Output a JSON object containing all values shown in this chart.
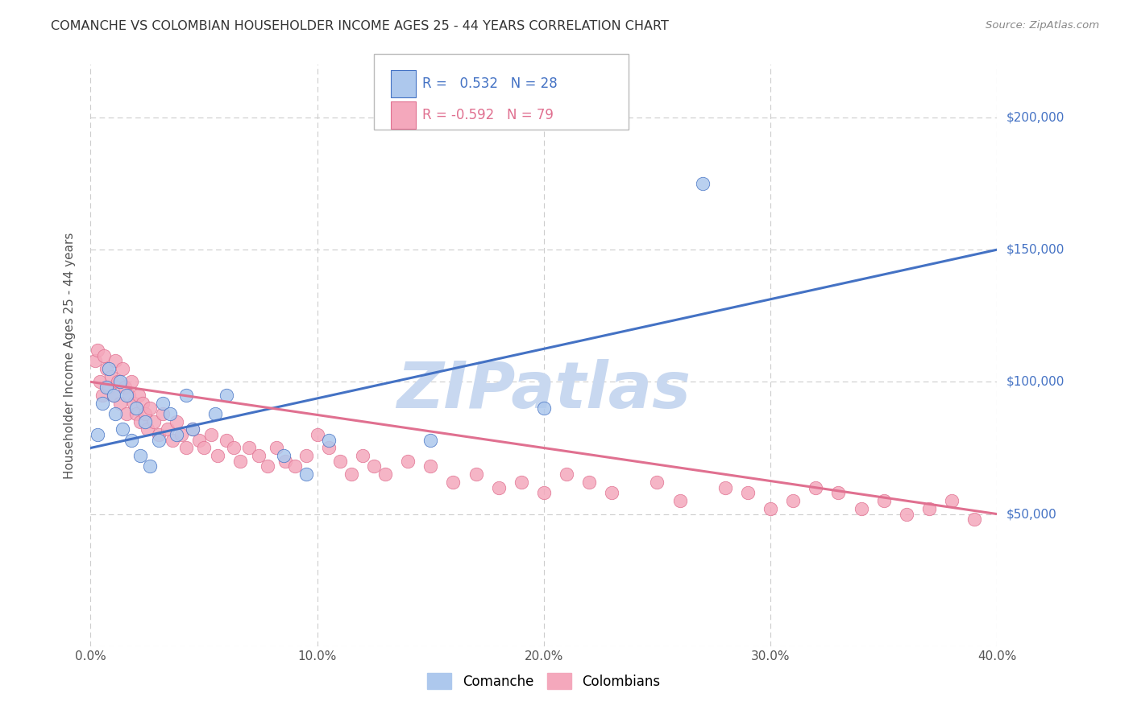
{
  "title": "COMANCHE VS COLOMBIAN HOUSEHOLDER INCOME AGES 25 - 44 YEARS CORRELATION CHART",
  "source": "Source: ZipAtlas.com",
  "ylabel": "Householder Income Ages 25 - 44 years",
  "xlim": [
    0.0,
    0.4
  ],
  "ylim": [
    0,
    220000
  ],
  "yticks": [
    0,
    50000,
    100000,
    150000,
    200000
  ],
  "xtick_labels": [
    "0.0%",
    "10.0%",
    "20.0%",
    "30.0%",
    "40.0%"
  ],
  "xticks": [
    0.0,
    0.1,
    0.2,
    0.3,
    0.4
  ],
  "bg_color": "#ffffff",
  "grid_color": "#cccccc",
  "comanche_color": "#adc8ed",
  "colombian_color": "#f4a8bc",
  "comanche_line_color": "#4472c4",
  "colombian_line_color": "#e07090",
  "legend_R1": " 0.532",
  "legend_N1": "28",
  "legend_R2": "-0.592",
  "legend_N2": "79",
  "watermark": "ZIPatlas",
  "watermark_color": "#c8d8f0",
  "comanche_x": [
    0.003,
    0.005,
    0.007,
    0.008,
    0.01,
    0.011,
    0.013,
    0.014,
    0.016,
    0.018,
    0.02,
    0.022,
    0.024,
    0.026,
    0.03,
    0.032,
    0.035,
    0.038,
    0.042,
    0.045,
    0.055,
    0.06,
    0.085,
    0.095,
    0.105,
    0.27,
    0.15,
    0.2
  ],
  "comanche_y": [
    80000,
    92000,
    98000,
    105000,
    95000,
    88000,
    100000,
    82000,
    95000,
    78000,
    90000,
    72000,
    85000,
    68000,
    78000,
    92000,
    88000,
    80000,
    95000,
    82000,
    88000,
    95000,
    72000,
    65000,
    78000,
    175000,
    78000,
    90000
  ],
  "colombian_x": [
    0.002,
    0.003,
    0.004,
    0.005,
    0.006,
    0.007,
    0.008,
    0.009,
    0.01,
    0.011,
    0.012,
    0.013,
    0.014,
    0.015,
    0.016,
    0.017,
    0.018,
    0.019,
    0.02,
    0.021,
    0.022,
    0.023,
    0.024,
    0.025,
    0.026,
    0.028,
    0.03,
    0.032,
    0.034,
    0.036,
    0.038,
    0.04,
    0.042,
    0.045,
    0.048,
    0.05,
    0.053,
    0.056,
    0.06,
    0.063,
    0.066,
    0.07,
    0.074,
    0.078,
    0.082,
    0.086,
    0.09,
    0.095,
    0.1,
    0.105,
    0.11,
    0.115,
    0.12,
    0.125,
    0.13,
    0.14,
    0.15,
    0.16,
    0.17,
    0.18,
    0.19,
    0.2,
    0.21,
    0.22,
    0.23,
    0.25,
    0.26,
    0.28,
    0.29,
    0.3,
    0.31,
    0.32,
    0.33,
    0.34,
    0.35,
    0.36,
    0.37,
    0.38,
    0.39
  ],
  "colombian_y": [
    108000,
    112000,
    100000,
    95000,
    110000,
    105000,
    98000,
    102000,
    95000,
    108000,
    100000,
    92000,
    105000,
    98000,
    88000,
    95000,
    100000,
    92000,
    88000,
    95000,
    85000,
    92000,
    88000,
    82000,
    90000,
    85000,
    80000,
    88000,
    82000,
    78000,
    85000,
    80000,
    75000,
    82000,
    78000,
    75000,
    80000,
    72000,
    78000,
    75000,
    70000,
    75000,
    72000,
    68000,
    75000,
    70000,
    68000,
    72000,
    80000,
    75000,
    70000,
    65000,
    72000,
    68000,
    65000,
    70000,
    68000,
    62000,
    65000,
    60000,
    62000,
    58000,
    65000,
    62000,
    58000,
    62000,
    55000,
    60000,
    58000,
    52000,
    55000,
    60000,
    58000,
    52000,
    55000,
    50000,
    52000,
    55000,
    48000
  ]
}
